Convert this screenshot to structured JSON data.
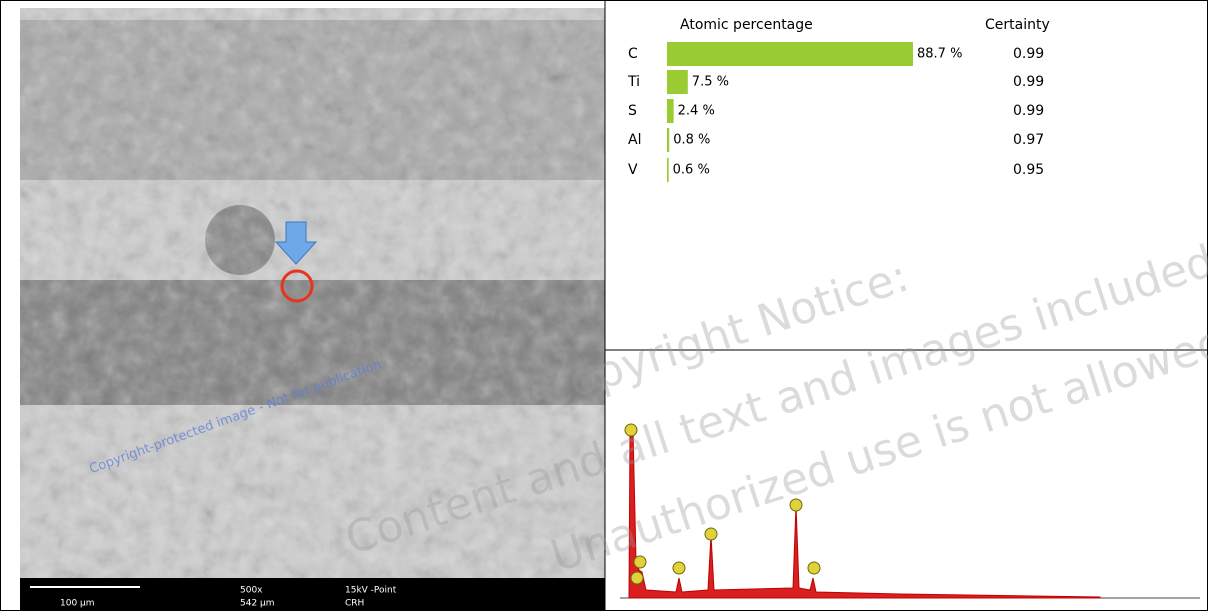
{
  "image": {
    "scale_bar": "100 µm",
    "magnification": "500x",
    "field_width": "542 µm",
    "voltage": "15kV -Point",
    "operator": "CRH",
    "watermark": "Copyright-protected image - Not for publication"
  },
  "watermark": {
    "line1": "Copyright Notice:",
    "line2": "Content and all text and images included are",
    "line3": "Unauthorized use is not allowed."
  },
  "chart_data": {
    "type": "bar",
    "title": "Atomic percentage",
    "certainty_title": "Certainty",
    "categories": [
      "C",
      "Ti",
      "S",
      "Al",
      "V"
    ],
    "values": [
      88.7,
      7.5,
      2.4,
      0.8,
      0.6
    ],
    "value_labels": [
      "88.7 %",
      "7.5 %",
      "2.4 %",
      "0.8 %",
      "0.6 %"
    ],
    "certainty": [
      0.99,
      0.99,
      0.99,
      0.97,
      0.95
    ],
    "color": "#99cc33"
  }
}
